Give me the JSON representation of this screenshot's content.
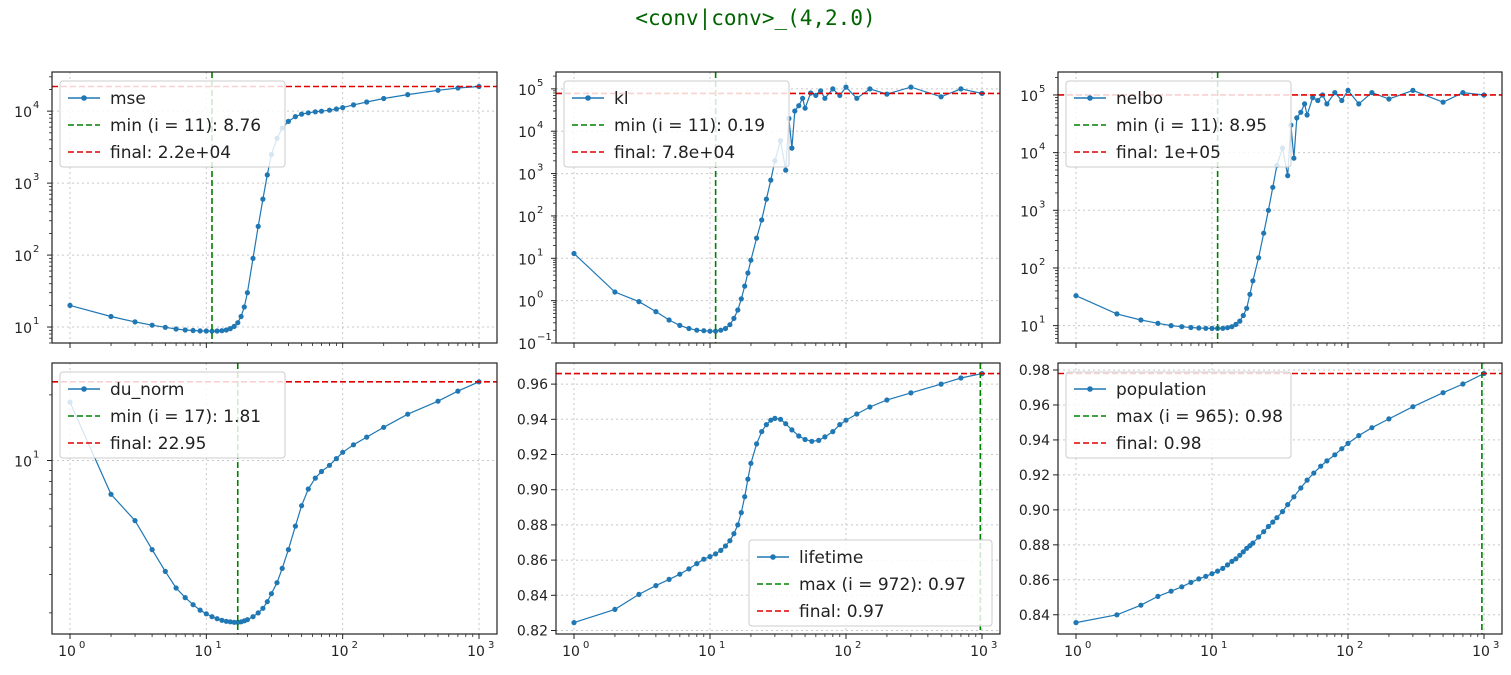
{
  "suptitle": "<conv|conv>_(4,2.0)",
  "colors": {
    "series": "#1f77b4",
    "extreme": "#008000",
    "final": "#e00000",
    "grid": "#c8c8c8"
  },
  "chart_data": [
    {
      "type": "line",
      "id": "mse",
      "xscale": "log",
      "yscale": "log",
      "xlim": [
        1,
        1000
      ],
      "ylim": [
        6,
        35000
      ],
      "x": [
        1,
        2,
        3,
        4,
        5,
        6,
        7,
        8,
        9,
        10,
        11,
        12,
        13,
        14,
        15,
        16,
        17,
        18,
        19,
        20,
        22,
        24,
        26,
        28,
        30,
        33,
        36,
        40,
        45,
        50,
        56,
        63,
        70,
        80,
        90,
        100,
        120,
        150,
        200,
        300,
        500,
        700,
        1000
      ],
      "y": [
        20,
        14,
        11.8,
        10.6,
        9.9,
        9.4,
        9.1,
        8.95,
        8.85,
        8.8,
        8.76,
        8.8,
        8.9,
        9.1,
        9.5,
        10.2,
        11.5,
        14,
        19,
        30,
        90,
        250,
        600,
        1300,
        2500,
        4200,
        5800,
        7200,
        8400,
        9100,
        9500,
        9800,
        10000,
        10300,
        10700,
        11200,
        12200,
        13400,
        15000,
        17000,
        19500,
        21000,
        22000
      ],
      "legend": [
        "mse",
        "min (i = 11): 8.76",
        "final: 2.2e+04"
      ],
      "vline": 11,
      "hline": 22000,
      "xticks": [
        {
          "v": 1,
          "label": "10"
        },
        {
          "v": 10,
          "label": "10"
        },
        {
          "v": 100,
          "label": "10"
        },
        {
          "v": 1000,
          "label": "10"
        }
      ],
      "xtick_exps": [
        "0",
        "1",
        "2",
        "3"
      ],
      "yticks": [
        {
          "v": 10,
          "label": "10",
          "exp": "1"
        },
        {
          "v": 100,
          "label": "10",
          "exp": "2"
        },
        {
          "v": 1000,
          "label": "10",
          "exp": "3"
        },
        {
          "v": 10000,
          "label": "10",
          "exp": "4"
        }
      ]
    },
    {
      "type": "line",
      "id": "kl",
      "xscale": "log",
      "yscale": "log",
      "xlim": [
        1,
        1000
      ],
      "ylim": [
        0.1,
        250000
      ],
      "x": [
        1,
        2,
        3,
        4,
        5,
        6,
        7,
        8,
        9,
        10,
        11,
        12,
        13,
        14,
        15,
        16,
        17,
        18,
        19,
        20,
        22,
        24,
        26,
        28,
        30,
        33,
        36,
        38,
        40,
        42,
        45,
        48,
        50,
        55,
        60,
        65,
        70,
        80,
        90,
        100,
        120,
        150,
        200,
        300,
        500,
        700,
        1000
      ],
      "y": [
        13,
        1.6,
        0.95,
        0.55,
        0.35,
        0.26,
        0.22,
        0.2,
        0.195,
        0.19,
        0.19,
        0.2,
        0.22,
        0.27,
        0.38,
        0.6,
        1.1,
        2.2,
        4.5,
        9,
        30,
        80,
        250,
        700,
        2000,
        6000,
        1200,
        20000,
        4000,
        30000,
        40000,
        60000,
        35000,
        80000,
        70000,
        90000,
        60000,
        100000,
        70000,
        110000,
        60000,
        100000,
        75000,
        110000,
        65000,
        100000,
        78000
      ],
      "legend": [
        "kl",
        "min (i = 11): 0.19",
        "final: 7.8e+04"
      ],
      "vline": 11,
      "hline": 78000,
      "xticks": [
        {
          "v": 1,
          "label": "10"
        },
        {
          "v": 10,
          "label": "10"
        },
        {
          "v": 100,
          "label": "10"
        },
        {
          "v": 1000,
          "label": "10"
        }
      ],
      "xtick_exps": [
        "0",
        "1",
        "2",
        "3"
      ],
      "yticks": [
        {
          "v": 0.1,
          "label": "10",
          "exp": "−1"
        },
        {
          "v": 1,
          "label": "10",
          "exp": "0"
        },
        {
          "v": 10,
          "label": "10",
          "exp": "1"
        },
        {
          "v": 100,
          "label": "10",
          "exp": "2"
        },
        {
          "v": 1000,
          "label": "10",
          "exp": "3"
        },
        {
          "v": 10000,
          "label": "10",
          "exp": "4"
        },
        {
          "v": 100000,
          "label": "10",
          "exp": "5"
        }
      ]
    },
    {
      "type": "line",
      "id": "nelbo",
      "xscale": "log",
      "yscale": "log",
      "xlim": [
        1,
        1000
      ],
      "ylim": [
        5,
        250000
      ],
      "x": [
        1,
        2,
        3,
        4,
        5,
        6,
        7,
        8,
        9,
        10,
        11,
        12,
        13,
        14,
        15,
        16,
        17,
        18,
        19,
        20,
        22,
        24,
        26,
        28,
        30,
        33,
        36,
        38,
        40,
        42,
        45,
        48,
        50,
        55,
        60,
        65,
        70,
        80,
        90,
        100,
        120,
        150,
        200,
        300,
        500,
        700,
        1000
      ],
      "y": [
        33,
        16,
        12.5,
        11,
        10,
        9.6,
        9.3,
        9.1,
        9.0,
        8.97,
        8.95,
        9.0,
        9.2,
        9.6,
        10.5,
        12,
        15,
        20,
        35,
        60,
        150,
        400,
        1000,
        2500,
        6000,
        12000,
        4000,
        30000,
        8000,
        40000,
        50000,
        70000,
        45000,
        90000,
        80000,
        100000,
        70000,
        110000,
        80000,
        120000,
        70000,
        110000,
        85000,
        120000,
        75000,
        110000,
        100000
      ],
      "legend": [
        "nelbo",
        "min (i = 11): 8.95",
        "final: 1e+05"
      ],
      "vline": 11,
      "hline": 100000,
      "xticks": [
        {
          "v": 1,
          "label": "10"
        },
        {
          "v": 10,
          "label": "10"
        },
        {
          "v": 100,
          "label": "10"
        },
        {
          "v": 1000,
          "label": "10"
        }
      ],
      "xtick_exps": [
        "0",
        "1",
        "2",
        "3"
      ],
      "yticks": [
        {
          "v": 10,
          "label": "10",
          "exp": "1"
        },
        {
          "v": 100,
          "label": "10",
          "exp": "2"
        },
        {
          "v": 1000,
          "label": "10",
          "exp": "3"
        },
        {
          "v": 10000,
          "label": "10",
          "exp": "4"
        },
        {
          "v": 100000,
          "label": "10",
          "exp": "5"
        }
      ]
    },
    {
      "type": "line",
      "id": "du_norm",
      "xscale": "log",
      "yscale": "log",
      "xlim": [
        1,
        1000
      ],
      "ylim": [
        1.6,
        28
      ],
      "x": [
        1,
        2,
        3,
        4,
        5,
        6,
        7,
        8,
        9,
        10,
        11,
        12,
        13,
        14,
        15,
        16,
        17,
        18,
        19,
        20,
        22,
        24,
        26,
        28,
        30,
        33,
        36,
        40,
        45,
        50,
        56,
        63,
        70,
        80,
        90,
        100,
        120,
        150,
        200,
        300,
        500,
        700,
        1000
      ],
      "y": [
        18.5,
        7.0,
        5.3,
        3.9,
        3.1,
        2.6,
        2.35,
        2.18,
        2.06,
        1.98,
        1.92,
        1.88,
        1.85,
        1.83,
        1.82,
        1.81,
        1.81,
        1.82,
        1.84,
        1.86,
        1.92,
        2.0,
        2.1,
        2.25,
        2.45,
        2.75,
        3.2,
        3.9,
        5.0,
        6.2,
        7.4,
        8.3,
        8.9,
        9.5,
        10.2,
        10.9,
        11.8,
        12.8,
        14.2,
        16.3,
        18.7,
        20.8,
        22.95
      ],
      "legend": [
        "du_norm",
        "min (i = 17): 1.81",
        "final: 22.95"
      ],
      "vline": 17,
      "hline": 22.95,
      "xticks": [
        {
          "v": 1,
          "label": "10"
        },
        {
          "v": 10,
          "label": "10"
        },
        {
          "v": 100,
          "label": "10"
        },
        {
          "v": 1000,
          "label": "10"
        }
      ],
      "xtick_exps": [
        "0",
        "1",
        "2",
        "3"
      ],
      "yticks": [
        {
          "v": 10,
          "label": "10",
          "exp": "1"
        }
      ]
    },
    {
      "type": "line",
      "id": "lifetime",
      "xscale": "log",
      "yscale": "linear",
      "xlim": [
        1,
        1000
      ],
      "ylim": [
        0.818,
        0.972
      ],
      "x": [
        1,
        2,
        3,
        4,
        5,
        6,
        7,
        8,
        9,
        10,
        11,
        12,
        13,
        14,
        15,
        16,
        17,
        18,
        19,
        20,
        22,
        24,
        26,
        28,
        30,
        33,
        36,
        40,
        45,
        50,
        56,
        63,
        70,
        80,
        90,
        100,
        120,
        150,
        200,
        300,
        500,
        700,
        1000
      ],
      "y": [
        0.8245,
        0.832,
        0.8405,
        0.8455,
        0.849,
        0.852,
        0.855,
        0.858,
        0.8605,
        0.862,
        0.8635,
        0.8655,
        0.868,
        0.871,
        0.875,
        0.88,
        0.887,
        0.896,
        0.906,
        0.915,
        0.926,
        0.933,
        0.937,
        0.9395,
        0.9405,
        0.94,
        0.9375,
        0.934,
        0.9305,
        0.9285,
        0.9275,
        0.928,
        0.93,
        0.933,
        0.937,
        0.9395,
        0.943,
        0.947,
        0.951,
        0.955,
        0.96,
        0.9635,
        0.966
      ],
      "legend": [
        "lifetime",
        "max (i = 972): 0.97",
        "final: 0.97"
      ],
      "vline": 972,
      "hline": 0.966,
      "xticks": [
        {
          "v": 1,
          "label": "10"
        },
        {
          "v": 10,
          "label": "10"
        },
        {
          "v": 100,
          "label": "10"
        },
        {
          "v": 1000,
          "label": "10"
        }
      ],
      "xtick_exps": [
        "0",
        "1",
        "2",
        "3"
      ],
      "yticks": [
        {
          "v": 0.82,
          "label": "0.82"
        },
        {
          "v": 0.84,
          "label": "0.84"
        },
        {
          "v": 0.86,
          "label": "0.86"
        },
        {
          "v": 0.88,
          "label": "0.88"
        },
        {
          "v": 0.9,
          "label": "0.90"
        },
        {
          "v": 0.92,
          "label": "0.92"
        },
        {
          "v": 0.94,
          "label": "0.94"
        },
        {
          "v": 0.96,
          "label": "0.96"
        }
      ]
    },
    {
      "type": "line",
      "id": "population",
      "xscale": "log",
      "yscale": "linear",
      "xlim": [
        1,
        1000
      ],
      "ylim": [
        0.829,
        0.984
      ],
      "x": [
        1,
        2,
        3,
        4,
        5,
        6,
        7,
        8,
        9,
        10,
        11,
        12,
        13,
        14,
        15,
        16,
        17,
        18,
        19,
        20,
        22,
        24,
        26,
        28,
        30,
        33,
        36,
        40,
        45,
        50,
        56,
        63,
        70,
        80,
        90,
        100,
        120,
        150,
        200,
        300,
        500,
        700,
        1000
      ],
      "y": [
        0.8355,
        0.84,
        0.8455,
        0.8505,
        0.8535,
        0.856,
        0.8585,
        0.8605,
        0.862,
        0.8635,
        0.865,
        0.8665,
        0.8685,
        0.8705,
        0.872,
        0.874,
        0.876,
        0.878,
        0.8795,
        0.881,
        0.8845,
        0.8875,
        0.8905,
        0.893,
        0.8955,
        0.899,
        0.903,
        0.9075,
        0.9125,
        0.917,
        0.921,
        0.925,
        0.928,
        0.9315,
        0.935,
        0.938,
        0.9425,
        0.947,
        0.952,
        0.959,
        0.967,
        0.972,
        0.978
      ],
      "legend": [
        "population",
        "max (i = 965): 0.98",
        "final: 0.98"
      ],
      "vline": 965,
      "hline": 0.978,
      "xticks": [
        {
          "v": 1,
          "label": "10"
        },
        {
          "v": 10,
          "label": "10"
        },
        {
          "v": 100,
          "label": "10"
        },
        {
          "v": 1000,
          "label": "10"
        }
      ],
      "xtick_exps": [
        "0",
        "1",
        "2",
        "3"
      ],
      "yticks": [
        {
          "v": 0.84,
          "label": "0.84"
        },
        {
          "v": 0.86,
          "label": "0.86"
        },
        {
          "v": 0.88,
          "label": "0.88"
        },
        {
          "v": 0.9,
          "label": "0.90"
        },
        {
          "v": 0.92,
          "label": "0.92"
        },
        {
          "v": 0.94,
          "label": "0.94"
        },
        {
          "v": 0.96,
          "label": "0.96"
        },
        {
          "v": 0.98,
          "label": "0.98"
        }
      ]
    }
  ]
}
